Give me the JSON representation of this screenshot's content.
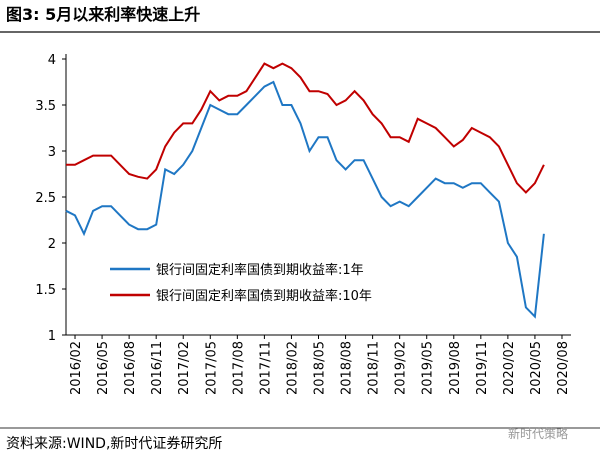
{
  "chart_data": {
    "type": "line",
    "title": "图3:  5月以来利率快速上升",
    "source": "资料来源:WIND,新时代证券研究所",
    "watermark": "新时代策略",
    "x": [
      "2016/01",
      "2016/02",
      "2016/03",
      "2016/04",
      "2016/05",
      "2016/06",
      "2016/07",
      "2016/08",
      "2016/09",
      "2016/10",
      "2016/11",
      "2016/12",
      "2017/01",
      "2017/02",
      "2017/03",
      "2017/04",
      "2017/05",
      "2017/06",
      "2017/07",
      "2017/08",
      "2017/09",
      "2017/10",
      "2017/11",
      "2017/12",
      "2018/01",
      "2018/02",
      "2018/03",
      "2018/04",
      "2018/05",
      "2018/06",
      "2018/07",
      "2018/08",
      "2018/09",
      "2018/10",
      "2018/11",
      "2018/12",
      "2019/01",
      "2019/02",
      "2019/03",
      "2019/04",
      "2019/05",
      "2019/06",
      "2019/07",
      "2019/08",
      "2019/09",
      "2019/10",
      "2019/11",
      "2019/12",
      "2020/01",
      "2020/02",
      "2020/03",
      "2020/04",
      "2020/05",
      "2020/06"
    ],
    "series": [
      {
        "name": "银行间固定利率国债到期收益率:1年",
        "color": "#1f77c4",
        "values": [
          2.35,
          2.3,
          2.1,
          2.35,
          2.4,
          2.4,
          2.3,
          2.2,
          2.15,
          2.15,
          2.2,
          2.8,
          2.75,
          2.85,
          3.0,
          3.25,
          3.5,
          3.45,
          3.4,
          3.4,
          3.5,
          3.6,
          3.7,
          3.75,
          3.5,
          3.5,
          3.3,
          3.0,
          3.15,
          3.15,
          2.9,
          2.8,
          2.9,
          2.9,
          2.7,
          2.5,
          2.4,
          2.45,
          2.4,
          2.5,
          2.6,
          2.7,
          2.65,
          2.65,
          2.6,
          2.65,
          2.65,
          2.55,
          2.45,
          2.0,
          1.85,
          1.3,
          1.2,
          2.1
        ]
      },
      {
        "name": "银行间固定利率国债到期收益率:10年",
        "color": "#c00000",
        "values": [
          2.85,
          2.85,
          2.9,
          2.95,
          2.95,
          2.95,
          2.85,
          2.75,
          2.72,
          2.7,
          2.8,
          3.05,
          3.2,
          3.3,
          3.3,
          3.45,
          3.65,
          3.55,
          3.6,
          3.6,
          3.65,
          3.8,
          3.95,
          3.9,
          3.95,
          3.9,
          3.8,
          3.65,
          3.65,
          3.62,
          3.5,
          3.55,
          3.65,
          3.55,
          3.4,
          3.3,
          3.15,
          3.15,
          3.1,
          3.35,
          3.3,
          3.25,
          3.15,
          3.05,
          3.12,
          3.25,
          3.2,
          3.15,
          3.05,
          2.85,
          2.65,
          2.55,
          2.65,
          2.85
        ]
      }
    ],
    "xlim": [
      "2016/01",
      "2020/09"
    ],
    "xticks": [
      "2016/02",
      "2016/05",
      "2016/08",
      "2016/11",
      "2017/02",
      "2017/05",
      "2017/08",
      "2017/11",
      "2018/02",
      "2018/05",
      "2018/08",
      "2018/11",
      "2019/02",
      "2019/05",
      "2019/08",
      "2019/11",
      "2020/02",
      "2020/05",
      "2020/08"
    ],
    "ylim": [
      1,
      4
    ],
    "yticks": [
      1,
      1.5,
      2,
      2.5,
      3,
      3.5,
      4
    ]
  }
}
